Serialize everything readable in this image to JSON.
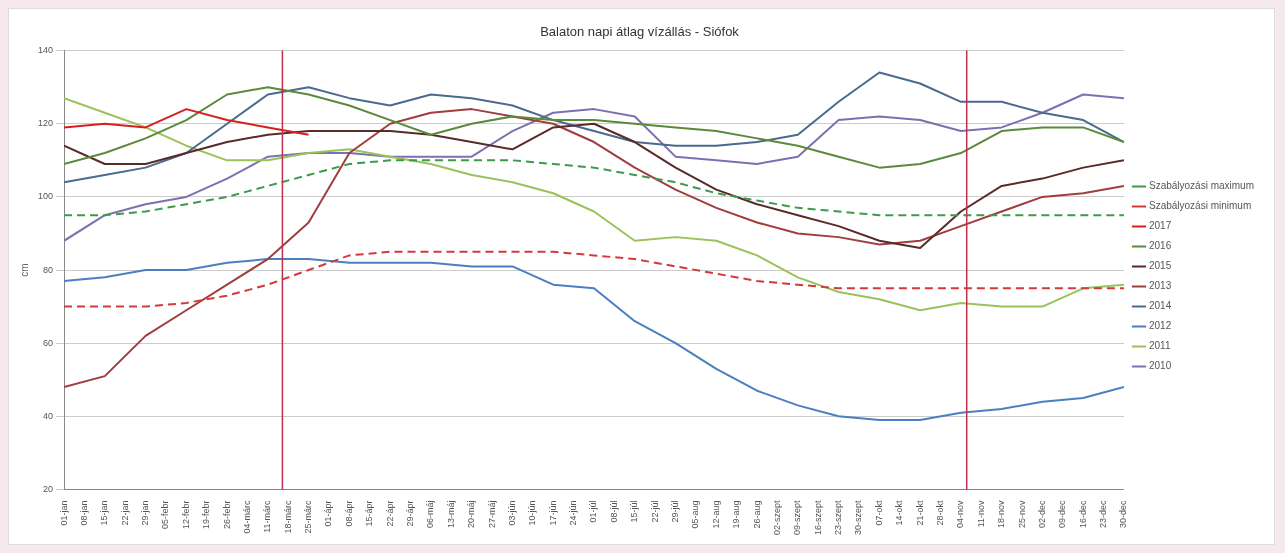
{
  "chart_data": {
    "type": "line",
    "title": "Balaton napi átlag vízállás - Siófok",
    "ylabel": "cm",
    "x": [
      "--01-01",
      "--01-15",
      "--01-29",
      "--02-12",
      "--02-26",
      "--03-11",
      "--03-25",
      "--04-08",
      "--04-22",
      "--05-06",
      "--05-20",
      "--06-03",
      "--06-17",
      "--07-01",
      "--07-15",
      "--07-29",
      "--08-12",
      "--08-26",
      "--09-09",
      "--09-23",
      "--10-07",
      "--10-21",
      "--11-04",
      "--11-18",
      "--12-02",
      "--12-16",
      "--12-30"
    ],
    "series": [
      {
        "name": "Szabályozási maximum",
        "color": "#3c9a4a",
        "line_style": "dashed",
        "values": [
          95,
          95,
          96,
          98,
          100,
          103,
          106,
          109,
          110,
          110,
          110,
          110,
          109,
          108,
          106,
          104,
          101,
          99,
          97,
          96,
          95,
          95,
          95,
          95,
          95,
          95,
          95
        ]
      },
      {
        "name": "Szabályozási minimum",
        "color": "#d23a3a",
        "line_style": "dashed",
        "values": [
          70,
          70,
          70,
          71,
          73,
          76,
          80,
          84,
          85,
          85,
          85,
          85,
          85,
          84,
          83,
          81,
          79,
          77,
          76,
          75,
          75,
          75,
          75,
          75,
          75,
          75,
          75
        ]
      },
      {
        "name": "2017",
        "color": "#d42020",
        "values": [
          119,
          120,
          119,
          124,
          121,
          119,
          117,
          null,
          null,
          null,
          null,
          null,
          null,
          null,
          null,
          null,
          null,
          null,
          null,
          null,
          null,
          null,
          null,
          null,
          null,
          null,
          null
        ]
      },
      {
        "name": "2016",
        "color": "#5a8a3a",
        "values": [
          109,
          112,
          116,
          121,
          128,
          130,
          128,
          125,
          121,
          117,
          120,
          122,
          121,
          121,
          120,
          119,
          118,
          116,
          114,
          111,
          108,
          109,
          112,
          118,
          119,
          119,
          115
        ]
      },
      {
        "name": "2015",
        "color": "#5a2a2a",
        "values": [
          114,
          109,
          109,
          112,
          115,
          117,
          118,
          118,
          118,
          117,
          115,
          113,
          119,
          120,
          115,
          108,
          102,
          98,
          95,
          92,
          88,
          86,
          96,
          103,
          105,
          108,
          110
        ]
      },
      {
        "name": "2013",
        "color": "#a03d3d",
        "values": [
          48,
          51,
          62,
          69,
          76,
          83,
          93,
          112,
          120,
          123,
          124,
          122,
          120,
          115,
          108,
          102,
          97,
          93,
          90,
          89,
          87,
          88,
          92,
          96,
          100,
          101,
          103
        ]
      },
      {
        "name": "2014",
        "color": "#4a6a8e",
        "values": [
          104,
          106,
          108,
          112,
          120,
          128,
          130,
          127,
          125,
          128,
          127,
          125,
          121,
          118,
          115,
          114,
          114,
          115,
          117,
          126,
          134,
          131,
          126,
          126,
          123,
          121,
          115
        ]
      },
      {
        "name": "2012",
        "color": "#4a7fc0",
        "values": [
          77,
          78,
          80,
          80,
          82,
          83,
          83,
          82,
          82,
          82,
          81,
          81,
          76,
          75,
          66,
          60,
          53,
          47,
          43,
          40,
          39,
          39,
          41,
          42,
          44,
          45,
          48
        ]
      },
      {
        "name": "2011",
        "color": "#9bc25a",
        "values": [
          127,
          123,
          119,
          114,
          110,
          110,
          112,
          113,
          111,
          109,
          106,
          104,
          101,
          96,
          88,
          89,
          88,
          84,
          78,
          74,
          72,
          69,
          71,
          70,
          70,
          75,
          76
        ]
      },
      {
        "name": "2010",
        "color": "#7b70b0",
        "values": [
          88,
          95,
          98,
          100,
          105,
          111,
          112,
          112,
          111,
          111,
          111,
          118,
          123,
          124,
          122,
          111,
          110,
          109,
          111,
          121,
          122,
          121,
          118,
          119,
          123,
          128,
          127
        ]
      }
    ],
    "xlim": [
      "--01-01",
      "--12-30"
    ],
    "xticks": [
      {
        "value": "--01-01",
        "label": "01-jan"
      },
      {
        "value": "--01-08",
        "label": "08-jan"
      },
      {
        "value": "--01-15",
        "label": "15-jan"
      },
      {
        "value": "--01-22",
        "label": "22-jan"
      },
      {
        "value": "--01-29",
        "label": "29-jan"
      },
      {
        "value": "--02-05",
        "label": "05-febr"
      },
      {
        "value": "--02-12",
        "label": "12-febr"
      },
      {
        "value": "--02-19",
        "label": "19-febr"
      },
      {
        "value": "--02-26",
        "label": "26-febr"
      },
      {
        "value": "--03-04",
        "label": "04-márc"
      },
      {
        "value": "--03-11",
        "label": "11-márc"
      },
      {
        "value": "--03-18",
        "label": "18-márc"
      },
      {
        "value": "--03-25",
        "label": "25-márc"
      },
      {
        "value": "--04-01",
        "label": "01-ápr"
      },
      {
        "value": "--04-08",
        "label": "08-ápr"
      },
      {
        "value": "--04-15",
        "label": "15-ápr"
      },
      {
        "value": "--04-22",
        "label": "22-ápr"
      },
      {
        "value": "--04-29",
        "label": "29-ápr"
      },
      {
        "value": "--05-06",
        "label": "06-máj"
      },
      {
        "value": "--05-13",
        "label": "13-máj"
      },
      {
        "value": "--05-20",
        "label": "20-máj"
      },
      {
        "value": "--05-27",
        "label": "27-máj"
      },
      {
        "value": "--06-03",
        "label": "03-jún"
      },
      {
        "value": "--06-10",
        "label": "10-jún"
      },
      {
        "value": "--06-17",
        "label": "17-jún"
      },
      {
        "value": "--06-24",
        "label": "24-jún"
      },
      {
        "value": "--07-01",
        "label": "01-júl"
      },
      {
        "value": "--07-08",
        "label": "08-júl"
      },
      {
        "value": "--07-15",
        "label": "15-júl"
      },
      {
        "value": "--07-22",
        "label": "22-júl"
      },
      {
        "value": "--07-29",
        "label": "29-júl"
      },
      {
        "value": "--08-05",
        "label": "05-aug"
      },
      {
        "value": "--08-12",
        "label": "12-aug"
      },
      {
        "value": "--08-19",
        "label": "19-aug"
      },
      {
        "value": "--08-26",
        "label": "26-aug"
      },
      {
        "value": "--09-02",
        "label": "02-szept"
      },
      {
        "value": "--09-09",
        "label": "09-szept"
      },
      {
        "value": "--09-16",
        "label": "16-szept"
      },
      {
        "value": "--09-23",
        "label": "23-szept"
      },
      {
        "value": "--09-30",
        "label": "30-szept"
      },
      {
        "value": "--10-07",
        "label": "07-okt"
      },
      {
        "value": "--10-14",
        "label": "14-okt"
      },
      {
        "value": "--10-21",
        "label": "21-okt"
      },
      {
        "value": "--10-28",
        "label": "28-okt"
      },
      {
        "value": "--11-04",
        "label": "04-nov"
      },
      {
        "value": "--11-11",
        "label": "11-nov"
      },
      {
        "value": "--11-18",
        "label": "18-nov"
      },
      {
        "value": "--11-25",
        "label": "25-nov"
      },
      {
        "value": "--12-02",
        "label": "02-dec"
      },
      {
        "value": "--12-09",
        "label": "09-dec"
      },
      {
        "value": "--12-16",
        "label": "16-dec"
      },
      {
        "value": "--12-23",
        "label": "23-dec"
      },
      {
        "value": "--12-30",
        "label": "30-dec"
      }
    ],
    "ylim": [
      20,
      140
    ],
    "yticks": [
      20,
      40,
      60,
      80,
      100,
      120,
      140
    ],
    "ref_lines": [
      {
        "axis": "x",
        "value": "--03-16",
        "color": "#c0304a"
      },
      {
        "axis": "x",
        "value": "--11-06",
        "color": "#c0304a"
      }
    ],
    "grid": "y",
    "legend": "right",
    "marker": "none"
  }
}
